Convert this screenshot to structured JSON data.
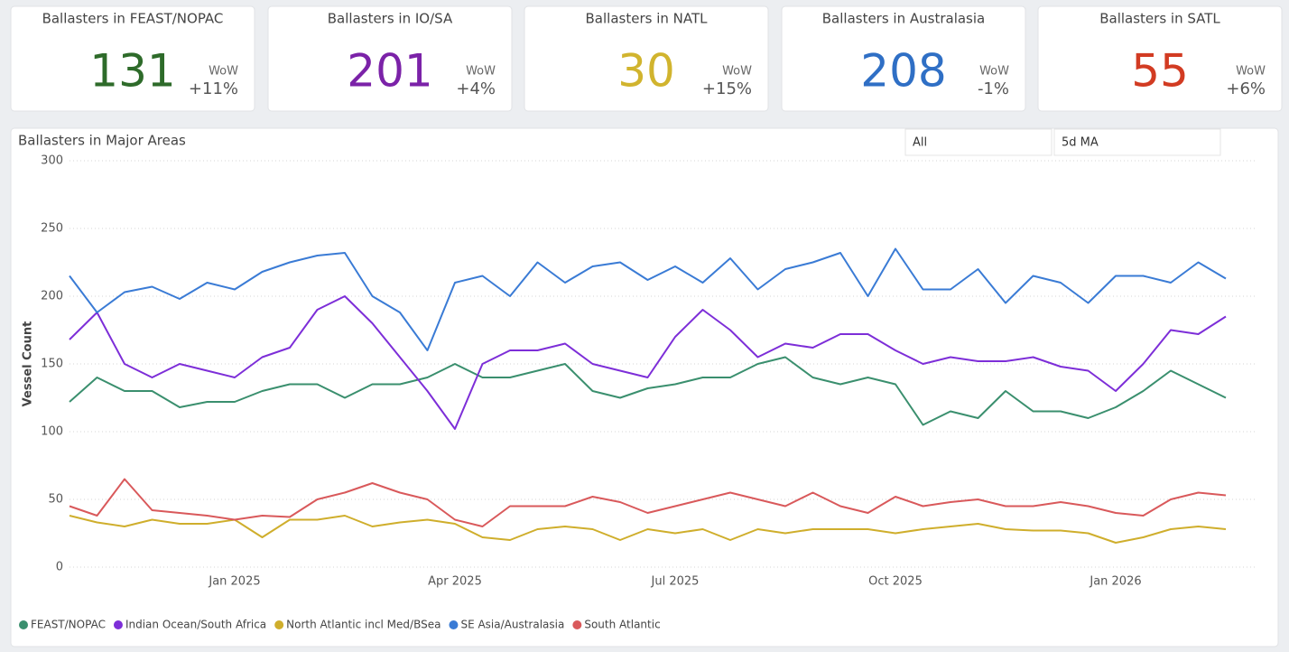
{
  "cards": [
    {
      "title": "Ballasters in FEAST/NOPAC",
      "value": 131,
      "color": "#2e6b2a",
      "wow_label": "WoW",
      "change": "+11%"
    },
    {
      "title": "Ballasters in IO/SA",
      "value": 201,
      "color": "#7b22a8",
      "wow_label": "WoW",
      "change": "+4%"
    },
    {
      "title": "Ballasters in NATL",
      "value": 30,
      "color": "#d1b42e",
      "wow_label": "WoW",
      "change": "+15%"
    },
    {
      "title": "Ballasters in Australasia",
      "value": 208,
      "color": "#2f6fc5",
      "wow_label": "WoW",
      "change": "-1%"
    },
    {
      "title": "Ballasters in SATL",
      "value": 55,
      "color": "#d23b22",
      "wow_label": "WoW",
      "change": "+6%"
    }
  ],
  "slicers": [
    "All",
    "5d MA"
  ],
  "chart_data": {
    "type": "line",
    "title": "Ballasters in Major Areas",
    "y_label": "Vessel Count",
    "categories": [
      null,
      null,
      null,
      null,
      null,
      null,
      "Jan 2025",
      null,
      null,
      null,
      null,
      null,
      null,
      null,
      "Apr 2025",
      null,
      null,
      null,
      null,
      null,
      null,
      null,
      "Jul 2025",
      null,
      null,
      null,
      null,
      null,
      null,
      null,
      "Oct 2025",
      null,
      null,
      null,
      null,
      null,
      null,
      null,
      "Jan 2026",
      null,
      null,
      null,
      null
    ],
    "ylim": [
      0,
      300
    ],
    "yticks": [
      0,
      50,
      100,
      150,
      200,
      250,
      300
    ],
    "grid": true,
    "legend": "bottom",
    "series": [
      {
        "name": "FEAST/NOPAC",
        "color": "#3a8f6e",
        "values": [
          122,
          140,
          130,
          130,
          118,
          122,
          122,
          130,
          135,
          135,
          125,
          135,
          135,
          140,
          150,
          140,
          140,
          145,
          150,
          130,
          125,
          132,
          135,
          140,
          140,
          150,
          155,
          140,
          135,
          140,
          135,
          105,
          115,
          110,
          130,
          115,
          115,
          110,
          118,
          130,
          145,
          135,
          125
        ]
      },
      {
        "name": "Indian Ocean/South Africa",
        "color": "#7d2ed8",
        "values": [
          168,
          188,
          150,
          140,
          150,
          145,
          140,
          155,
          162,
          190,
          200,
          180,
          155,
          130,
          102,
          150,
          160,
          160,
          165,
          150,
          145,
          140,
          170,
          190,
          175,
          155,
          165,
          162,
          172,
          172,
          160,
          150,
          155,
          152,
          152,
          155,
          148,
          145,
          130,
          150,
          175,
          172,
          185
        ]
      },
      {
        "name": "North Atlantic incl Med/BSea",
        "color": "#cfae2c",
        "values": [
          38,
          33,
          30,
          35,
          32,
          32,
          35,
          22,
          35,
          35,
          38,
          30,
          33,
          35,
          32,
          22,
          20,
          28,
          30,
          28,
          20,
          28,
          25,
          28,
          20,
          28,
          25,
          28,
          28,
          28,
          25,
          28,
          30,
          32,
          28,
          27,
          27,
          25,
          18,
          22,
          28,
          30,
          28
        ]
      },
      {
        "name": "SE Asia/Australasia",
        "color": "#3a7bd5",
        "values": [
          215,
          188,
          203,
          207,
          198,
          210,
          205,
          218,
          225,
          230,
          232,
          200,
          188,
          160,
          210,
          215,
          200,
          225,
          210,
          222,
          225,
          212,
          222,
          210,
          228,
          205,
          220,
          225,
          232,
          200,
          235,
          205,
          205,
          220,
          195,
          215,
          210,
          195,
          215,
          215,
          210,
          225,
          213
        ]
      },
      {
        "name": "South Atlantic",
        "color": "#d9595b",
        "values": [
          45,
          38,
          65,
          42,
          40,
          38,
          35,
          38,
          37,
          50,
          55,
          62,
          55,
          50,
          35,
          30,
          45,
          45,
          45,
          52,
          48,
          40,
          45,
          50,
          55,
          50,
          45,
          55,
          45,
          40,
          52,
          45,
          48,
          50,
          45,
          45,
          48,
          45,
          40,
          38,
          50,
          55,
          53
        ]
      }
    ]
  }
}
